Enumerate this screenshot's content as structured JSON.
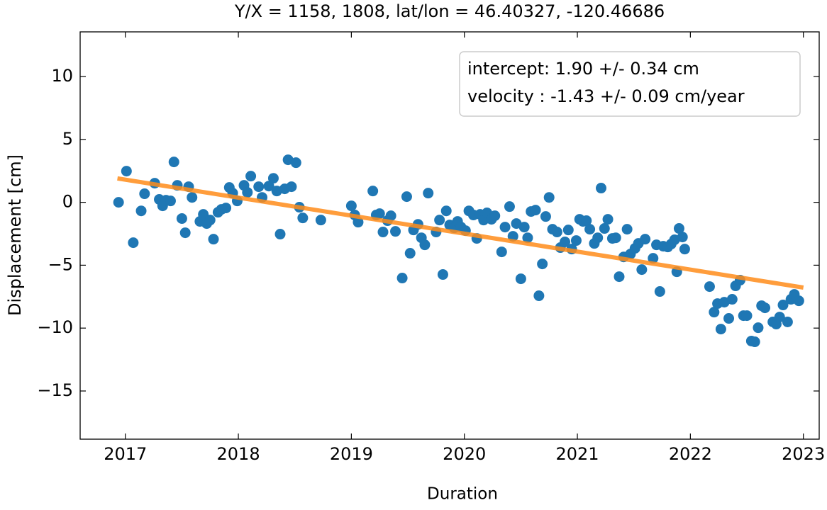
{
  "chart_data": {
    "type": "scatter",
    "title": "Y/X = 1158, 1808, lat/lon = 46.40327, -120.46686",
    "xlabel": "Duration",
    "ylabel": "Displacement [cm]",
    "xlim": [
      2016.6,
      2023.14
    ],
    "ylim": [
      -18.83,
      13.55
    ],
    "xticks": [
      2017,
      2018,
      2019,
      2020,
      2021,
      2022,
      2023
    ],
    "yticks": [
      {
        "value": -15,
        "label": "−15"
      },
      {
        "value": -10,
        "label": "−10"
      },
      {
        "value": -5,
        "label": "−5"
      },
      0,
      5,
      10
    ],
    "series": [
      {
        "color": "#1f77b4",
        "x": [
          2016.94,
          2017.01,
          2017.07,
          2017.14,
          2017.17,
          2017.26,
          2017.3,
          2017.33,
          2017.36,
          2017.4,
          2017.43,
          2017.46,
          2017.5,
          2017.53,
          2017.56,
          2017.59,
          2017.66,
          2017.69,
          2017.72,
          2017.75,
          2017.78,
          2017.82,
          2017.85,
          2017.89,
          2017.92,
          2017.95,
          2017.99,
          2018.05,
          2018.08,
          2018.11,
          2018.18,
          2018.21,
          2018.27,
          2018.31,
          2018.34,
          2018.37,
          2018.41,
          2018.44,
          2018.47,
          2018.51,
          2018.54,
          2018.57,
          2018.73,
          2019.0,
          2019.03,
          2019.06,
          2019.19,
          2019.22,
          2019.25,
          2019.28,
          2019.32,
          2019.35,
          2019.39,
          2019.45,
          2019.49,
          2019.52,
          2019.55,
          2019.59,
          2019.62,
          2019.65,
          2019.68,
          2019.75,
          2019.78,
          2019.81,
          2019.84,
          2019.87,
          2019.91,
          2019.94,
          2019.97,
          2020.01,
          2020.04,
          2020.08,
          2020.11,
          2020.14,
          2020.17,
          2020.2,
          2020.24,
          2020.27,
          2020.33,
          2020.36,
          2020.4,
          2020.43,
          2020.46,
          2020.5,
          2020.53,
          2020.56,
          2020.59,
          2020.63,
          2020.66,
          2020.69,
          2020.72,
          2020.75,
          2020.78,
          2020.82,
          2020.85,
          2020.89,
          2020.92,
          2020.95,
          2020.99,
          2021.02,
          2021.05,
          2021.08,
          2021.11,
          2021.15,
          2021.18,
          2021.21,
          2021.24,
          2021.27,
          2021.31,
          2021.34,
          2021.37,
          2021.41,
          2021.44,
          2021.47,
          2021.51,
          2021.54,
          2021.57,
          2021.6,
          2021.67,
          2021.7,
          2021.73,
          2021.76,
          2021.8,
          2021.83,
          2021.86,
          2021.9,
          2021.88,
          2021.93,
          2021.95,
          2022.17,
          2022.21,
          2022.24,
          2022.27,
          2022.3,
          2022.34,
          2022.37,
          2022.4,
          2022.44,
          2022.47,
          2022.5,
          2022.54,
          2022.57,
          2022.6,
          2022.63,
          2022.66,
          2022.73,
          2022.76,
          2022.79,
          2022.82,
          2022.86,
          2022.89,
          2022.92,
          2022.96
        ],
        "values": [
          0,
          2.48,
          -3.21,
          -0.68,
          0.68,
          1.52,
          0.23,
          -0.28,
          0.17,
          0.11,
          3.21,
          1.35,
          -1.29,
          -2.42,
          1.24,
          0.39,
          -1.52,
          -0.96,
          -1.69,
          -1.41,
          -2.93,
          -0.79,
          -0.56,
          -0.45,
          1.18,
          0.73,
          0.11,
          1.35,
          0.79,
          2.08,
          1.24,
          0.39,
          1.29,
          1.91,
          0.9,
          -2.53,
          1.07,
          3.38,
          1.24,
          3.15,
          -0.39,
          -1.24,
          -1.41,
          -0.28,
          -1.01,
          -1.58,
          0.9,
          -1.01,
          -0.9,
          -2.36,
          -1.46,
          -1.07,
          -2.31,
          -6.02,
          0.45,
          -4.05,
          -2.2,
          -1.75,
          -2.82,
          -3.38,
          0.73,
          -2.36,
          -1.41,
          -5.74,
          -0.68,
          -1.8,
          -2.03,
          -1.52,
          -1.97,
          -2.25,
          -0.68,
          -1.01,
          -2.87,
          -0.96,
          -1.41,
          -0.84,
          -1.35,
          -1.07,
          -3.94,
          -1.97,
          -0.34,
          -2.7,
          -1.69,
          -6.08,
          -1.97,
          -2.82,
          -0.73,
          -0.62,
          -7.43,
          -4.9,
          -1.13,
          0.39,
          -2.14,
          -2.36,
          -3.6,
          -3.15,
          -2.2,
          -3.72,
          -3.04,
          -1.35,
          -1.52,
          -1.46,
          -2.14,
          -3.27,
          -2.82,
          1.13,
          -2.08,
          -1.35,
          -2.87,
          -2.82,
          -5.91,
          -4.34,
          -2.14,
          -4.11,
          -3.66,
          -3.27,
          -5.35,
          -2.93,
          -4.45,
          -3.38,
          -7.09,
          -3.49,
          -3.55,
          -3.32,
          -2.98,
          -2.08,
          -5.52,
          -2.76,
          -3.72,
          -6.7,
          -8.73,
          -8.05,
          -10.08,
          -7.94,
          -9.23,
          -7.71,
          -6.64,
          -6.19,
          -9.01,
          -9.01,
          -11.03,
          -11.09,
          -9.97,
          -8.22,
          -8.39,
          -9.51,
          -9.68,
          -9.12,
          -8.16,
          -9.51,
          -7.71,
          -7.32,
          -7.83
        ]
      }
    ],
    "fit": {
      "color": "#ff8c1a",
      "x": [
        2016.93,
        2023.0
      ],
      "values": [
        1.9,
        -6.78
      ]
    },
    "annotations": [
      "intercept: 1.90 +/- 0.34 cm",
      "velocity : -1.43 +/- 0.09 cm/year"
    ]
  }
}
